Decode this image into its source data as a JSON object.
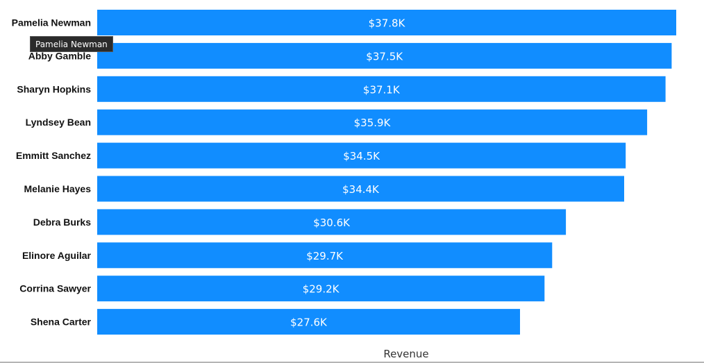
{
  "chart_data": {
    "type": "bar",
    "orientation": "horizontal",
    "categories": [
      "Pamelia Newman",
      "Abby Gamble",
      "Sharyn Hopkins",
      "Lyndsey Bean",
      "Emmitt Sanchez",
      "Melanie Hayes",
      "Debra Burks",
      "Elinore Aguilar",
      "Corrina Sawyer",
      "Shena Carter"
    ],
    "values": [
      37800,
      37500,
      37100,
      35900,
      34500,
      34400,
      30600,
      29700,
      29200,
      27600
    ],
    "data_labels": [
      "$37.8K",
      "$37.5K",
      "$37.1K",
      "$35.9K",
      "$34.5K",
      "$34.4K",
      "$30.6K",
      "$29.7K",
      "$29.2K",
      "$27.6K"
    ],
    "xlabel": "Revenue",
    "ylabel": "",
    "xlim": [
      0,
      38000
    ],
    "grid": false,
    "bar_color": "#118DFF"
  },
  "tooltip": {
    "text": "Pamelia Newman"
  }
}
